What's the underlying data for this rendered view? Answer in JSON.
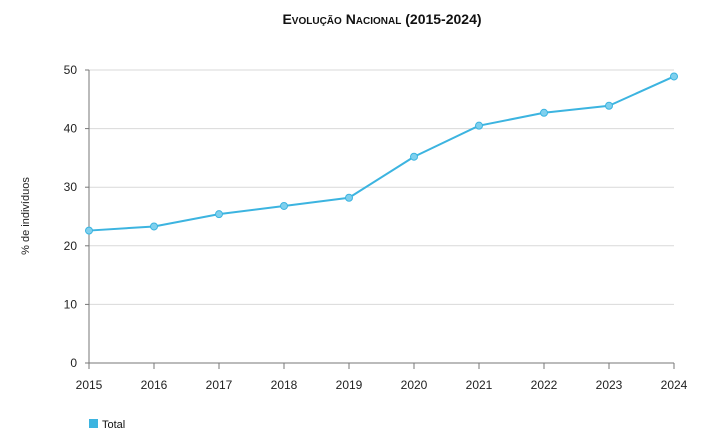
{
  "chart_data": {
    "type": "line",
    "title": "Evolução Nacional (2015-2024)",
    "xlabel": "",
    "ylabel": "% de indivíduos",
    "x": [
      "2015",
      "2016",
      "2017",
      "2018",
      "2019",
      "2020",
      "2021",
      "2022",
      "2023",
      "2024"
    ],
    "series": [
      {
        "name": "Total",
        "color": "#3cb4e0",
        "values": [
          22.6,
          23.3,
          25.4,
          26.8,
          28.2,
          35.2,
          40.5,
          42.7,
          43.9,
          48.9
        ]
      }
    ],
    "ylim": [
      0,
      50
    ],
    "yticks": [
      "0",
      "10",
      "20",
      "30",
      "40",
      "50"
    ],
    "grid": true,
    "legend": "bottom-left"
  }
}
